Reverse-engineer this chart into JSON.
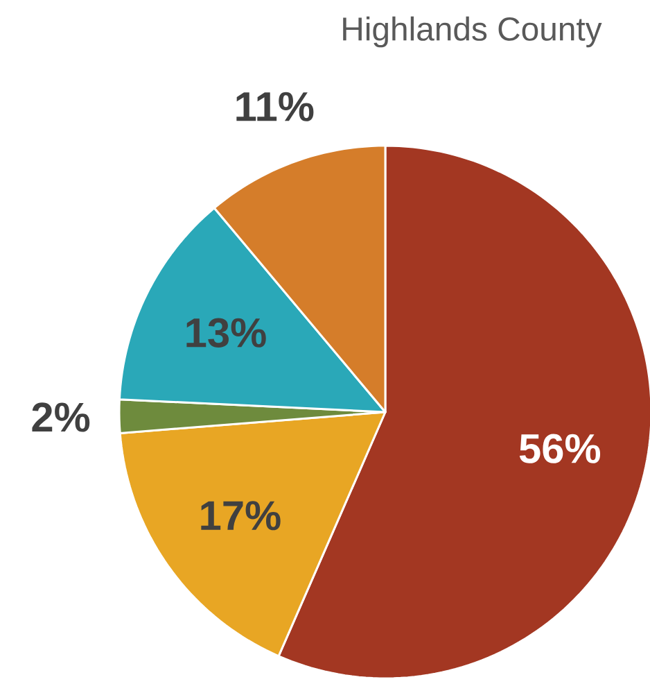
{
  "chart_data": {
    "type": "pie",
    "title": "Highlands County",
    "categories": [
      null,
      null,
      null,
      null,
      null
    ],
    "values": [
      56,
      17,
      2,
      13,
      11
    ],
    "colors": [
      "#a33722",
      "#e8a624",
      "#6e8b3d",
      "#2aa8b8",
      "#d57d2a"
    ],
    "value_labels": [
      "56%",
      "17%",
      "2%",
      "13%",
      "11%"
    ]
  }
}
